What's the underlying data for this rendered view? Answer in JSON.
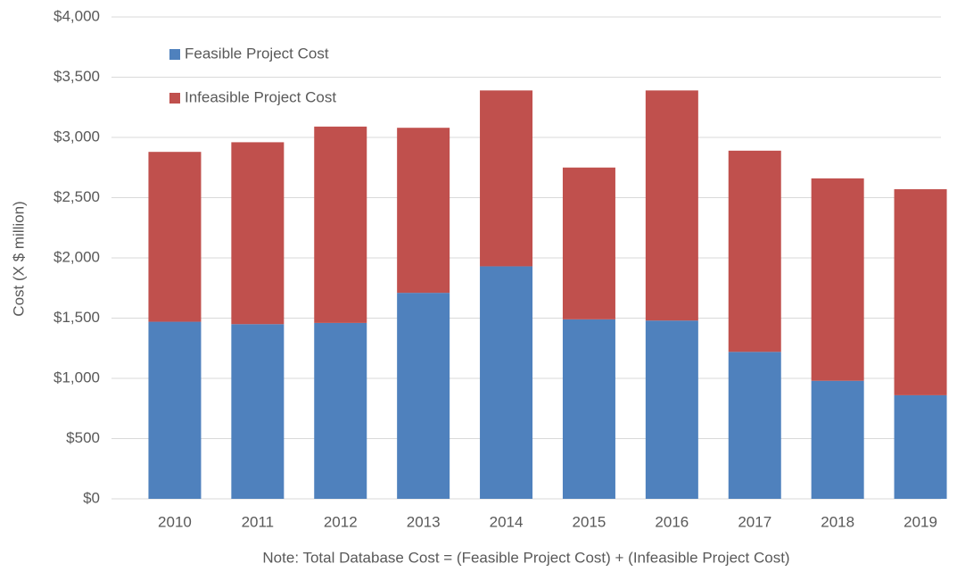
{
  "chart_data": {
    "type": "stacked_bar",
    "y_axis_label": "Cost (X $ million)",
    "note": "Note:  Total Database Cost = (Feasible Project Cost) + (Infeasible Project Cost)",
    "categories": [
      "2010",
      "2011",
      "2012",
      "2013",
      "2014",
      "2015",
      "2016",
      "2017",
      "2018",
      "2019"
    ],
    "series": [
      {
        "name": "Feasible Project Cost",
        "color": "#4f81bd",
        "values": [
          1470,
          1450,
          1460,
          1710,
          1930,
          1490,
          1480,
          1220,
          980,
          860
        ]
      },
      {
        "name": "Infeasible Project Cost",
        "color": "#c0504d",
        "values": [
          1410,
          1510,
          1630,
          1370,
          1460,
          1260,
          1910,
          1670,
          1680,
          1710
        ]
      }
    ],
    "ylim": [
      0,
      4000
    ],
    "yticks": [
      {
        "value": 0,
        "label": "$0"
      },
      {
        "value": 500,
        "label": "$500"
      },
      {
        "value": 1000,
        "label": "$1,000"
      },
      {
        "value": 1500,
        "label": "$1,500"
      },
      {
        "value": 2000,
        "label": "$2,000"
      },
      {
        "value": 2500,
        "label": "$2,500"
      },
      {
        "value": 3000,
        "label": "$3,000"
      },
      {
        "value": 3500,
        "label": "$3,500"
      },
      {
        "value": 4000,
        "label": "$4,000"
      }
    ],
    "grid": true,
    "legend": "top-left"
  }
}
